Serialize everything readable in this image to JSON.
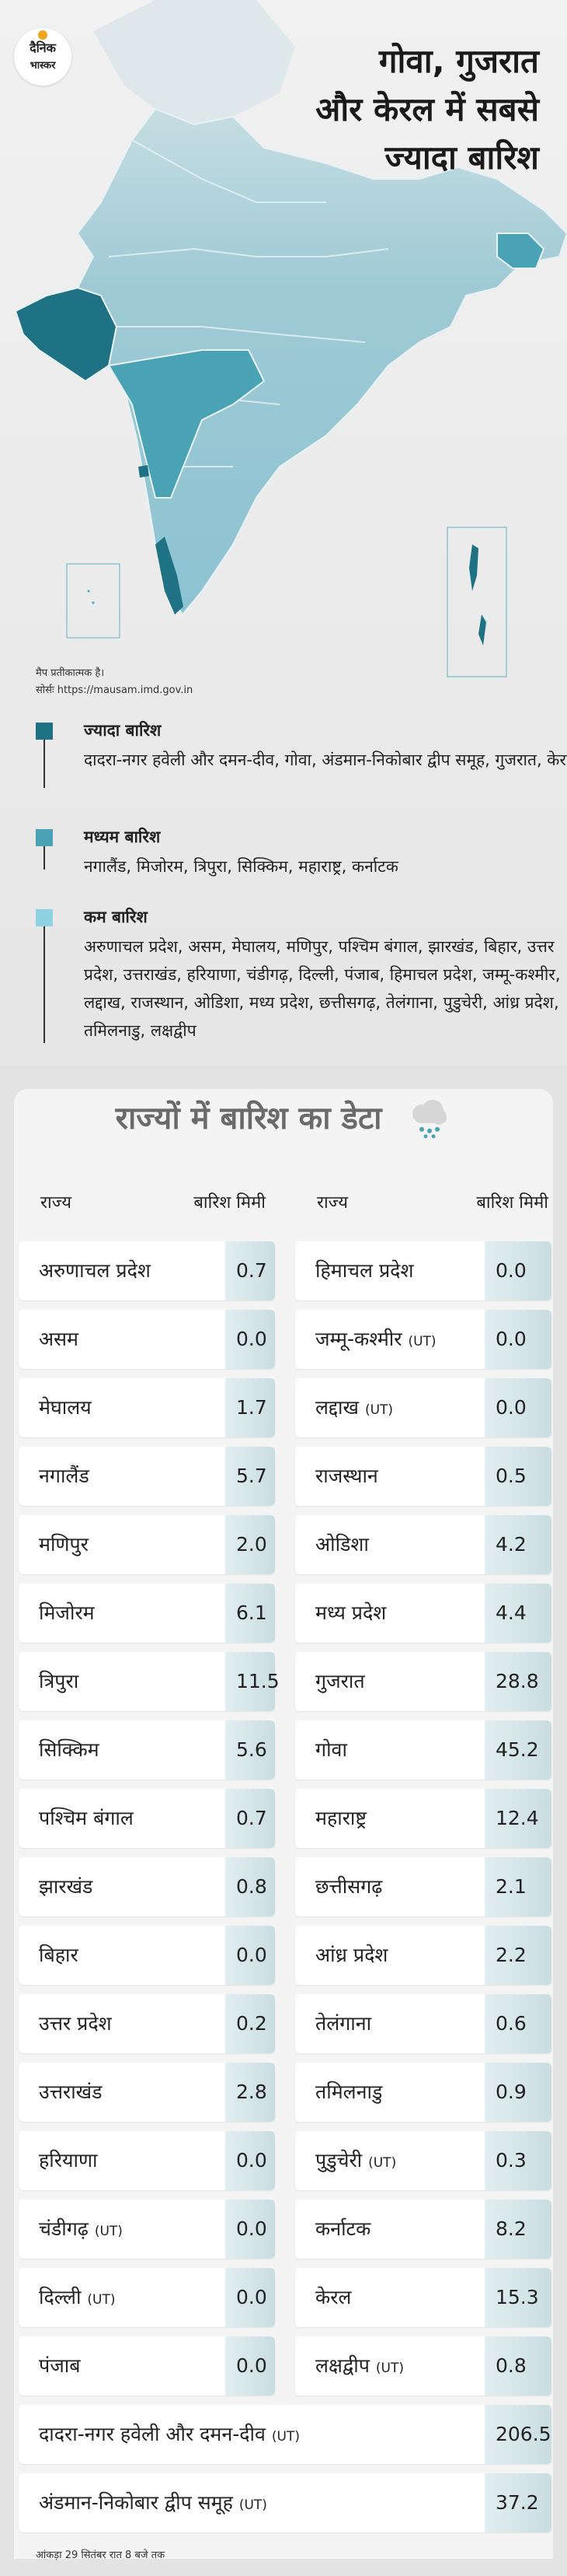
{
  "logo": {
    "line1": "दैनिक",
    "line2": "भास्कर"
  },
  "headline": [
    "गोवा, गुजरात",
    "और केरल में सबसे",
    "ज्यादा बारिश"
  ],
  "map_note": {
    "line1": "मैप प्रतीकात्मक है।",
    "line2": "सोर्सः https://mausam.imd.gov.in"
  },
  "colors": {
    "high": "#1f7283",
    "medium": "#4aa3b5",
    "low": "#8fd2e3"
  },
  "legend": [
    {
      "title": "ज्यादा बारिश",
      "text": "दादरा-नगर हवेली और दमन-दीव, गोवा, अंडमान-निकोबार द्वीप समूह, गुजरात, केरल"
    },
    {
      "title": "मध्यम बारिश",
      "text": "नगालैंड, मिजोरम, त्रिपुरा, सिक्किम, महाराष्ट्र, कर्नाटक"
    },
    {
      "title": "कम बारिश",
      "text": "अरुणाचल प्रदेश, असम, मेघालय, मणिपुर, पश्चिम बंगाल, झारखंड, बिहार, उत्तर प्रदेश, उत्तराखंड, हरियाणा, चंडीगढ़, दिल्ली, पंजाब, हिमाचल प्रदेश, जम्मू-कश्मीर, लद्दाख, राजस्थान, ओडिशा, मध्य प्रदेश, छत्तीसगढ़, तेलंगाना, पुडुचेरी, आंध्र प्रदेश, तमिलनाडु, लक्षद्वीप"
    }
  ],
  "table": {
    "title": "राज्यों में बारिश का डेटा",
    "col_state": "राज्य",
    "col_rain": "बारिश मिमी",
    "left": [
      {
        "name": "अरुणाचल प्रदेश",
        "ut": "",
        "value": "0.7"
      },
      {
        "name": "असम",
        "ut": "",
        "value": "0.0"
      },
      {
        "name": "मेघालय",
        "ut": "",
        "value": "1.7"
      },
      {
        "name": "नगालैंड",
        "ut": "",
        "value": "5.7"
      },
      {
        "name": "मणिपुर",
        "ut": "",
        "value": "2.0"
      },
      {
        "name": "मिजोरम",
        "ut": "",
        "value": "6.1"
      },
      {
        "name": "त्रिपुरा",
        "ut": "",
        "value": "11.5"
      },
      {
        "name": "सिक्किम",
        "ut": "",
        "value": "5.6"
      },
      {
        "name": "पश्चिम बंगाल",
        "ut": "",
        "value": "0.7"
      },
      {
        "name": "झारखंड",
        "ut": "",
        "value": "0.8"
      },
      {
        "name": "बिहार",
        "ut": "",
        "value": "0.0"
      },
      {
        "name": "उत्तर प्रदेश",
        "ut": "",
        "value": "0.2"
      },
      {
        "name": "उत्तराखंड",
        "ut": "",
        "value": "2.8"
      },
      {
        "name": "हरियाणा",
        "ut": "",
        "value": "0.0"
      },
      {
        "name": "चंडीगढ़",
        "ut": "(UT)",
        "value": "0.0"
      },
      {
        "name": "दिल्ली",
        "ut": "(UT)",
        "value": "0.0"
      },
      {
        "name": "पंजाब",
        "ut": "",
        "value": "0.0"
      }
    ],
    "right": [
      {
        "name": "हिमाचल प्रदेश",
        "ut": "",
        "value": "0.0"
      },
      {
        "name": "जम्मू-कश्मीर",
        "ut": "(UT)",
        "value": "0.0"
      },
      {
        "name": "लद्दाख",
        "ut": "(UT)",
        "value": "0.0"
      },
      {
        "name": "राजस्थान",
        "ut": "",
        "value": "0.5"
      },
      {
        "name": "ओडिशा",
        "ut": "",
        "value": "4.2"
      },
      {
        "name": "मध्य प्रदेश",
        "ut": "",
        "value": "4.4"
      },
      {
        "name": "गुजरात",
        "ut": "",
        "value": "28.8"
      },
      {
        "name": "गोवा",
        "ut": "",
        "value": "45.2"
      },
      {
        "name": "महाराष्ट्र",
        "ut": "",
        "value": "12.4"
      },
      {
        "name": "छत्तीसगढ़",
        "ut": "",
        "value": "2.1"
      },
      {
        "name": "आंध्र प्रदेश",
        "ut": "",
        "value": "2.2"
      },
      {
        "name": "तेलंगाना",
        "ut": "",
        "value": "0.6"
      },
      {
        "name": "तमिलनाडु",
        "ut": "",
        "value": "0.9"
      },
      {
        "name": "पुडुचेरी",
        "ut": "(UT)",
        "value": "0.3"
      },
      {
        "name": "कर्नाटक",
        "ut": "",
        "value": "8.2"
      },
      {
        "name": "केरल",
        "ut": "",
        "value": "15.3"
      },
      {
        "name": "लक्षद्वीप",
        "ut": "(UT)",
        "value": "0.8"
      }
    ],
    "wide": [
      {
        "name": "दादरा-नगर हवेली और दमन-दीव",
        "ut": "(UT)",
        "value": "206.5"
      },
      {
        "name": "अंडमान-निकोबार द्वीप समूह",
        "ut": "(UT)",
        "value": "37.2"
      }
    ]
  },
  "footnote": "आंकड़ा 29 सितंबर रात 8 बजे तक"
}
